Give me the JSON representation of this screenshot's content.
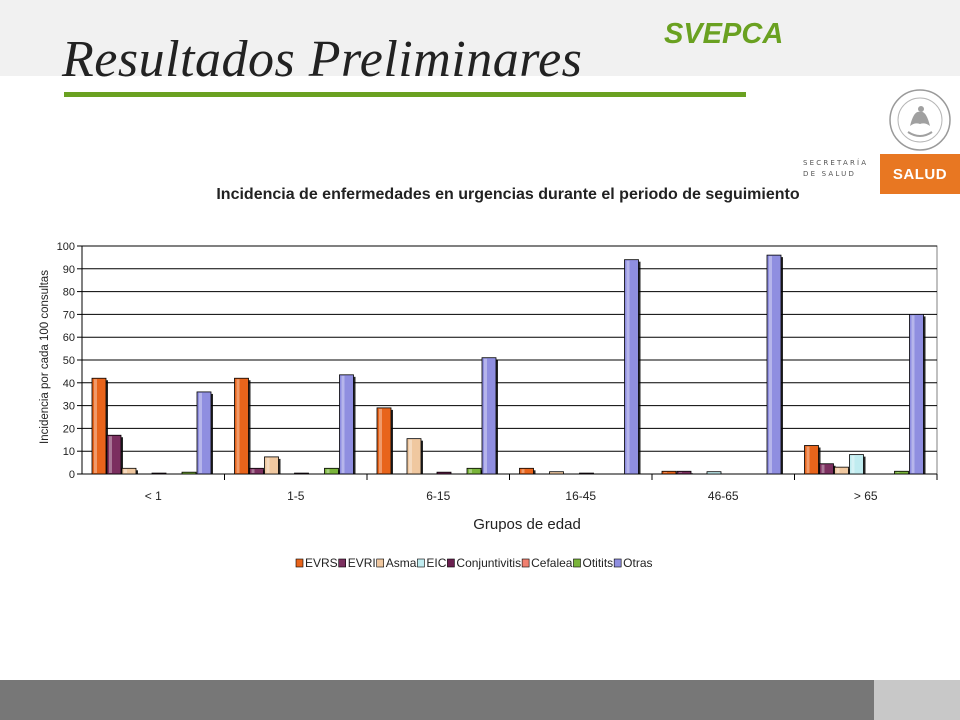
{
  "slide": {
    "title": "Resultados Preliminares",
    "brand": "SVEPCA",
    "ministry_line1": "SECRETARÍA",
    "ministry_line2": "DE SALUD",
    "salud_label": "SALUD",
    "seal_text": "ESTADOS UNIDOS MEXICANOS"
  },
  "colors": {
    "accent_green": "#6aa121",
    "salud_orange": "#e87722",
    "bottom_bar": "#777777"
  },
  "chart_data": {
    "type": "bar",
    "title": "Incidencia de enfermedades en urgencias durante el periodo de seguimiento",
    "xlabel": "Grupos de edad",
    "ylabel": "Incidencia por cada 100 consultas",
    "ylim": [
      0,
      100
    ],
    "yticks": [
      0,
      10,
      20,
      30,
      40,
      50,
      60,
      70,
      80,
      90,
      100
    ],
    "grid": true,
    "legend_position": "bottom",
    "categories": [
      "< 1",
      "1-5",
      "6-15",
      "16-45",
      "46-65",
      "> 65"
    ],
    "series": [
      {
        "name": "EVRS",
        "color": "#e8641b",
        "values": [
          42,
          42,
          29,
          2.5,
          1.2,
          12.5
        ]
      },
      {
        "name": "EVRI",
        "color": "#7b2f5f",
        "values": [
          17,
          2.5,
          0,
          0,
          1.2,
          4.5
        ]
      },
      {
        "name": "Asma",
        "color": "#f0c8a0",
        "values": [
          2.5,
          7.5,
          15.5,
          1,
          0,
          3
        ]
      },
      {
        "name": "EIC",
        "color": "#c0ecf0",
        "values": [
          0,
          0,
          0,
          0,
          1,
          8.5
        ]
      },
      {
        "name": "Conjuntivitis",
        "color": "#6b2050",
        "values": [
          0.4,
          0.4,
          0.8,
          0.4,
          0,
          0
        ]
      },
      {
        "name": "Cefalea",
        "color": "#f08070",
        "values": [
          0,
          0,
          0,
          0,
          0,
          0
        ]
      },
      {
        "name": "Otitits",
        "color": "#79b43a",
        "values": [
          0.8,
          2.5,
          2.5,
          0,
          0,
          1.2
        ]
      },
      {
        "name": "Otras",
        "color": "#8f8ee0",
        "values": [
          36,
          43.5,
          51,
          94,
          96,
          70
        ]
      }
    ]
  }
}
